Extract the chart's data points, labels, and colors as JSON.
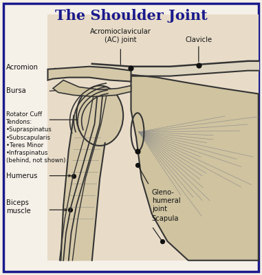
{
  "title": "The Shoulder Joint",
  "title_color": "#1a1a8c",
  "title_fontsize": 15,
  "title_fontstyle": "bold",
  "bg_color": "#f5f0e8",
  "border_color": "#1a1a8c",
  "border_lw": 2.5,
  "line_color": "#222222",
  "anatomy_line_color": "#333333",
  "dot_color": "#111111",
  "label_fontsize": 7.2,
  "label_color": "#111111",
  "rotator_fontsize": 6.2,
  "ac_label": "Acromioclavicular\n(AC) joint",
  "clavicle_label": "Clavicle",
  "acromion_label": "Acromion",
  "bursa_label": "Bursa",
  "rotator_label": "Rotator Cuff\nTendons:\n•Supraspinatus\n•Subscapularis\n•Teres Minor\n•Infraspinatus\n(behind, not shown)",
  "humerus_label": "Humerus",
  "biceps_label": "Biceps\nmuscle",
  "gleno_label": "Gleno-\nhumeral\njoint",
  "scapula_label": "Scapula"
}
